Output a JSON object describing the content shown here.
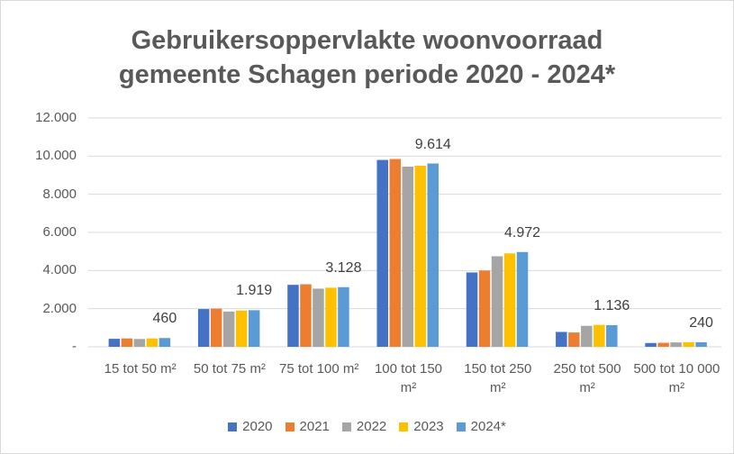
{
  "chart_data": {
    "type": "bar",
    "title": [
      "Gebruikersoppervlakte woonvoorraad",
      "gemeente Schagen periode 2020 - 2024*"
    ],
    "categories": [
      "15 tot 50 m²",
      "50 tot 75 m²",
      "75 tot 100 m²",
      "100 tot 150 m²",
      "150 tot 250 m²",
      "250 tot 500 m²",
      "500 tot 10 000 m²"
    ],
    "series": [
      {
        "name": "2020",
        "color": "#4472c4",
        "values": [
          420,
          1980,
          3250,
          9800,
          3900,
          780,
          200
        ]
      },
      {
        "name": "2021",
        "color": "#ed7d31",
        "values": [
          440,
          2000,
          3280,
          9850,
          4000,
          750,
          210
        ]
      },
      {
        "name": "2022",
        "color": "#a5a5a5",
        "values": [
          410,
          1850,
          3050,
          9450,
          4750,
          1100,
          230
        ]
      },
      {
        "name": "2023",
        "color": "#ffc000",
        "values": [
          440,
          1900,
          3100,
          9500,
          4900,
          1150,
          240
        ]
      },
      {
        "name": "2024*",
        "color": "#5b9bd5",
        "values": [
          460,
          1919,
          3128,
          9614,
          4972,
          1136,
          240
        ],
        "value_labels": [
          "460",
          "1.919",
          "3.128",
          "9.614",
          "4.972",
          "1.136",
          "240"
        ]
      }
    ],
    "ylim": [
      0,
      12000
    ],
    "yticks": [
      {
        "value": 0,
        "label": "-"
      },
      {
        "value": 2000,
        "label": "2.000"
      },
      {
        "value": 4000,
        "label": "4.000"
      },
      {
        "value": 6000,
        "label": "6.000"
      },
      {
        "value": 8000,
        "label": "8.000"
      },
      {
        "value": 10000,
        "label": "10.000"
      },
      {
        "value": 12000,
        "label": "12.000"
      }
    ],
    "grid": true,
    "legend": "bottom"
  }
}
